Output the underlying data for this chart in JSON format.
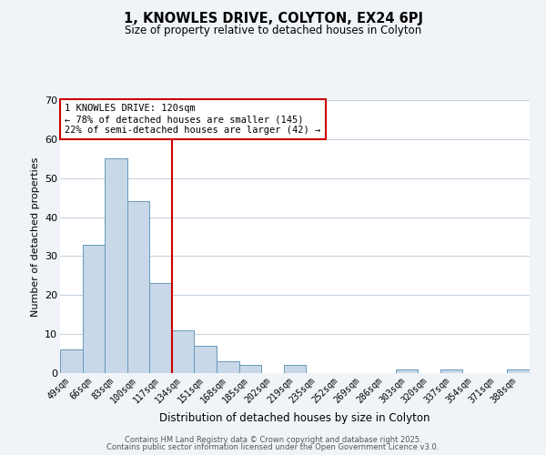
{
  "title": "1, KNOWLES DRIVE, COLYTON, EX24 6PJ",
  "subtitle": "Size of property relative to detached houses in Colyton",
  "xlabel": "Distribution of detached houses by size in Colyton",
  "ylabel": "Number of detached properties",
  "categories": [
    "49sqm",
    "66sqm",
    "83sqm",
    "100sqm",
    "117sqm",
    "134sqm",
    "151sqm",
    "168sqm",
    "185sqm",
    "202sqm",
    "219sqm",
    "235sqm",
    "252sqm",
    "269sqm",
    "286sqm",
    "303sqm",
    "320sqm",
    "337sqm",
    "354sqm",
    "371sqm",
    "388sqm"
  ],
  "values": [
    6,
    33,
    55,
    44,
    23,
    11,
    7,
    3,
    2,
    0,
    2,
    0,
    0,
    0,
    0,
    1,
    0,
    1,
    0,
    0,
    1
  ],
  "bar_color": "#c8d8e8",
  "bar_edge_color": "#6699bb",
  "ylim": [
    0,
    70
  ],
  "yticks": [
    0,
    10,
    20,
    30,
    40,
    50,
    60,
    70
  ],
  "vline_x": 4.5,
  "vline_color": "#cc0000",
  "annotation_line1": "1 KNOWLES DRIVE: 120sqm",
  "annotation_line2": "← 78% of detached houses are smaller (145)",
  "annotation_line3": "22% of semi-detached houses are larger (42) →",
  "box_color": "#cc0000",
  "footer1": "Contains HM Land Registry data © Crown copyright and database right 2025.",
  "footer2": "Contains public sector information licensed under the Open Government Licence v3.0.",
  "bg_color": "#f0f4f8",
  "plot_bg_color": "#ffffff",
  "grid_color": "#c8d4e0"
}
